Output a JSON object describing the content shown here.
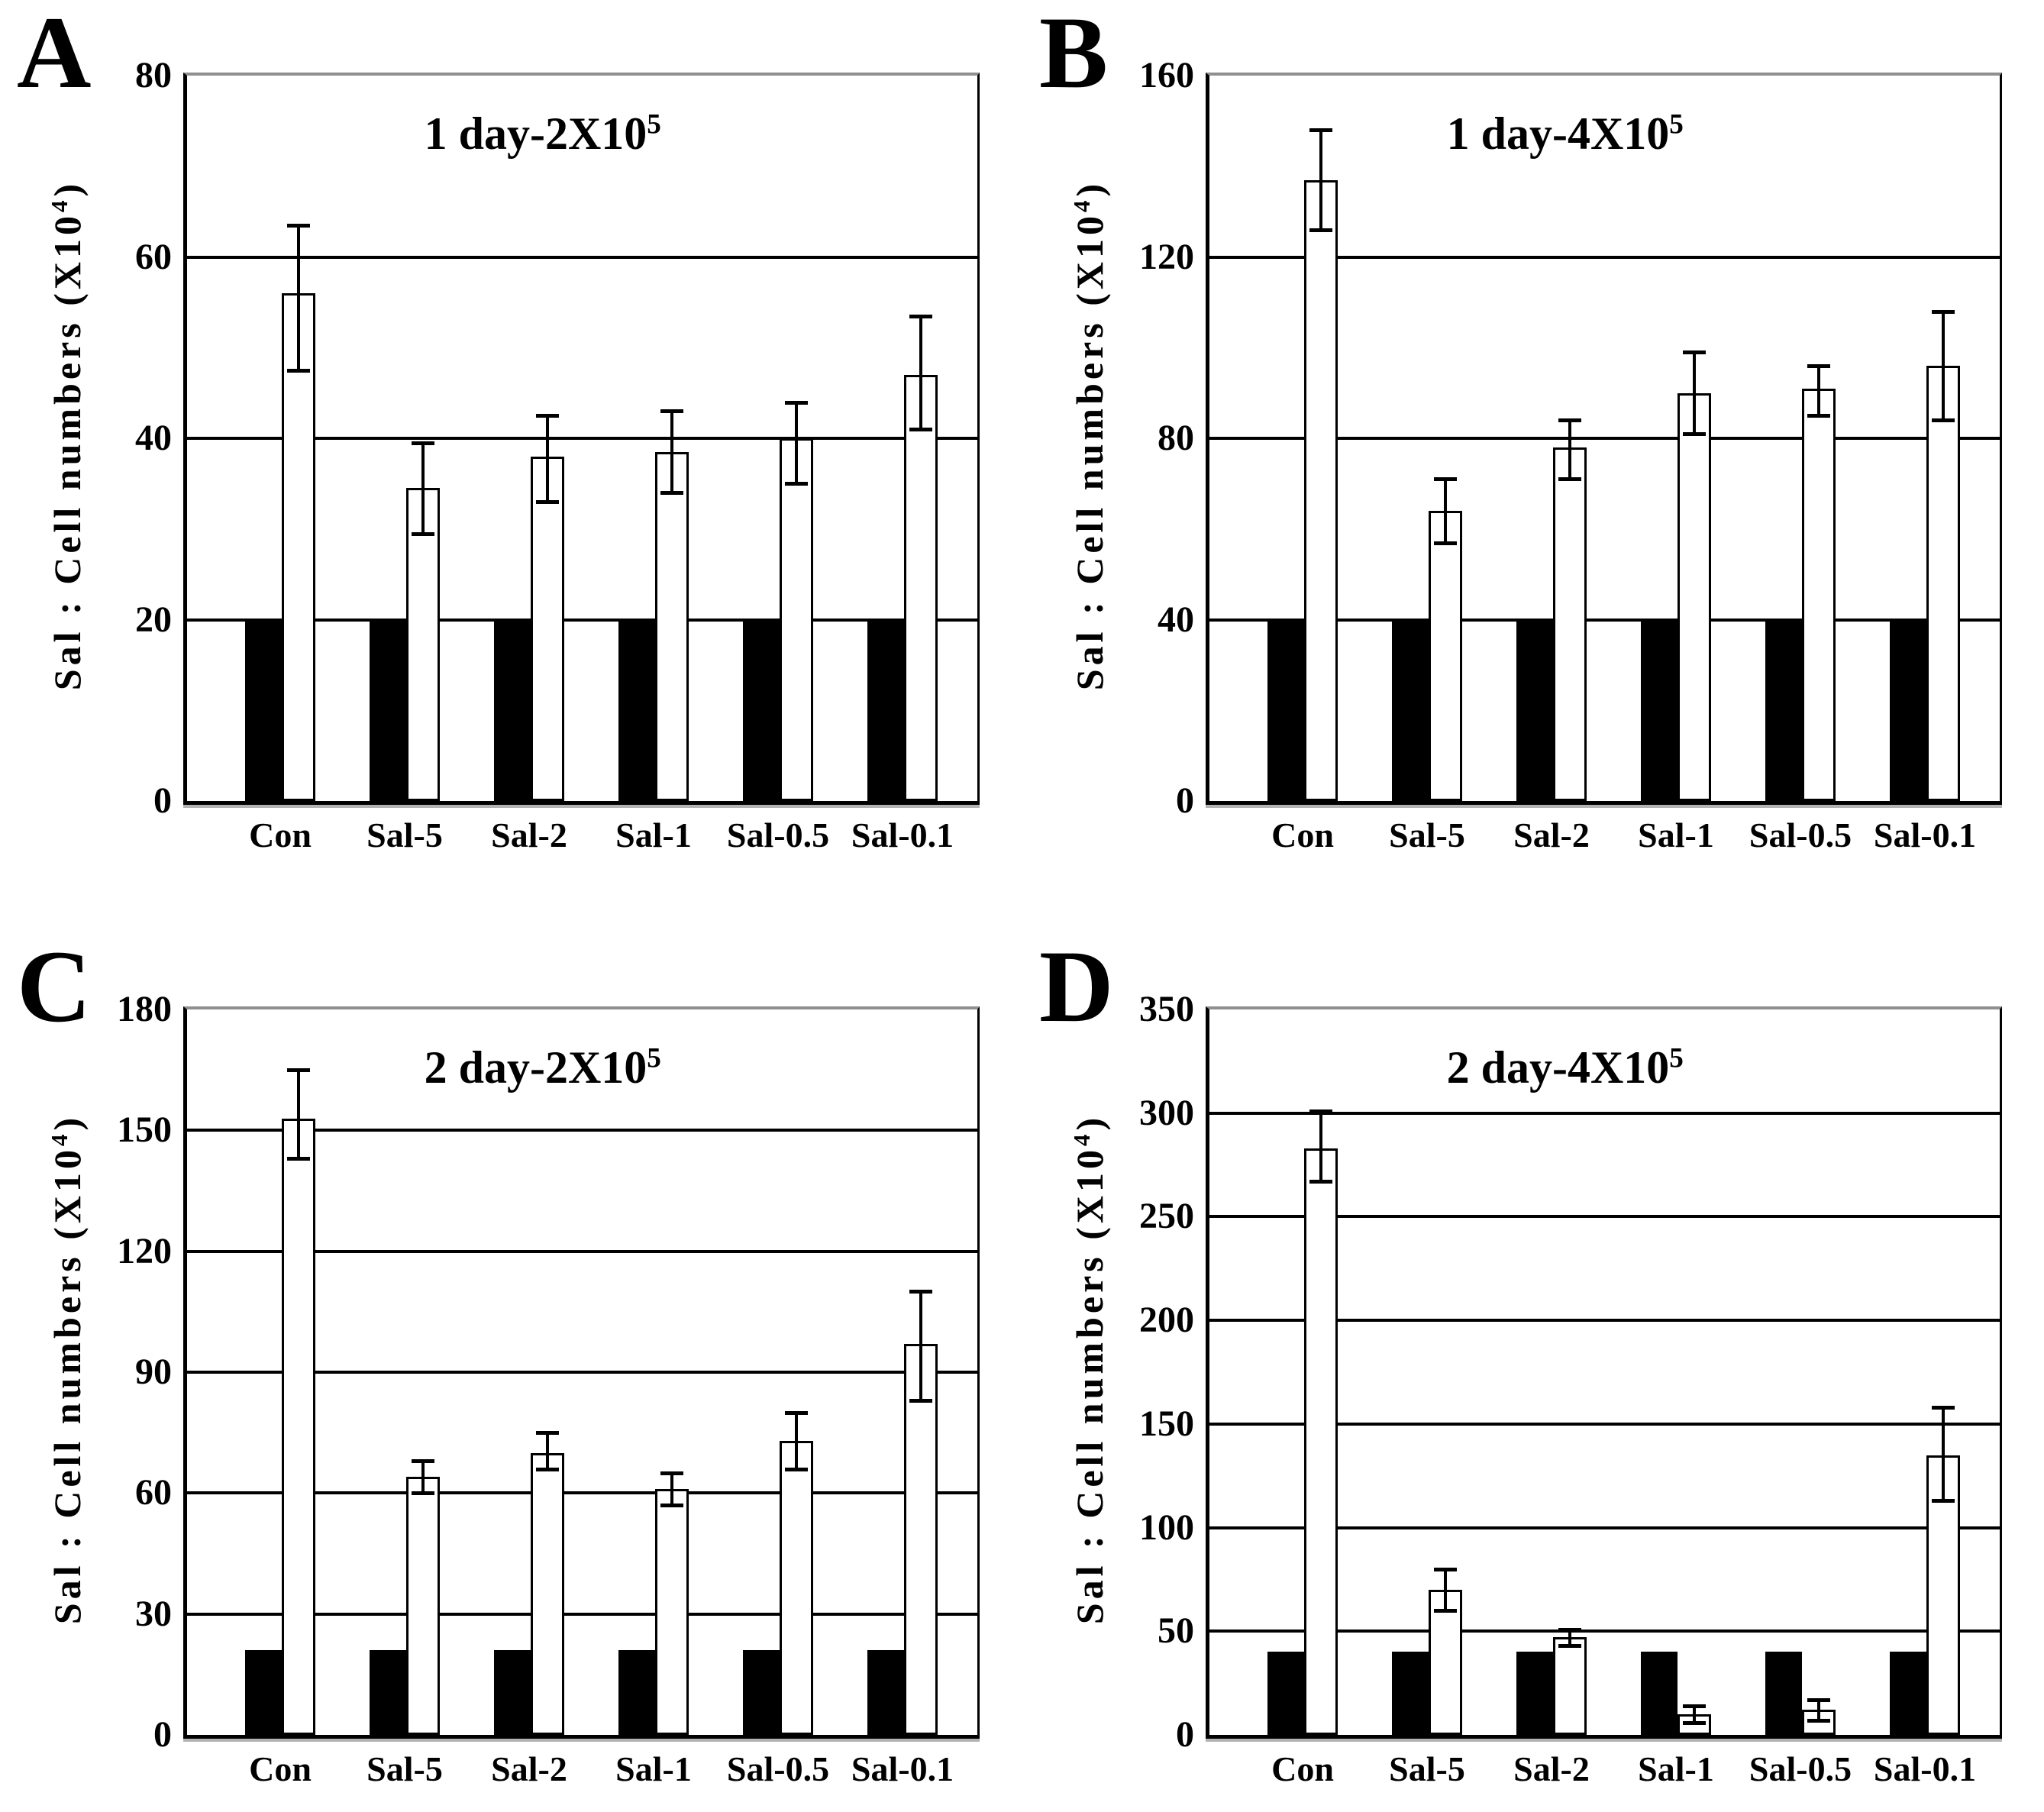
{
  "chart_data": [
    {
      "panel_letter": "A",
      "type": "bar",
      "title": "1 day-2X10^5",
      "title_base": "1 day-2X10",
      "title_exp": "5",
      "ylabel": "Sal : Cell numbers (X10^4)",
      "ylabel_base": "Sal : Cell numbers  (X10",
      "ylabel_exp": "4",
      "ylabel_close": ")",
      "categories": [
        "Con",
        "Sal-5",
        "Sal-2",
        "Sal-1",
        "Sal-0.5",
        "Sal-0.1"
      ],
      "series": [
        {
          "name": "black",
          "fill": "#000000",
          "values": [
            20,
            20,
            20,
            20,
            20,
            20
          ]
        },
        {
          "name": "white",
          "fill": "#ffffff",
          "values": [
            56,
            34.5,
            38,
            38.5,
            40,
            47
          ],
          "errors_up": [
            7.5,
            5,
            4.5,
            4.5,
            4,
            6.5
          ],
          "errors_down": [
            8.5,
            5,
            5,
            4.5,
            5,
            6
          ]
        }
      ],
      "ylim": [
        0,
        80
      ],
      "ytick_step": 20,
      "yticks": [
        0,
        20,
        40,
        60,
        80
      ],
      "grid": true,
      "legend": "none"
    },
    {
      "panel_letter": "B",
      "type": "bar",
      "title": "1 day-4X10^5",
      "title_base": "1 day-4X10",
      "title_exp": "5",
      "ylabel": "Sal : Cell numbers (X10^4)",
      "ylabel_base": "Sal : Cell numbers  (X10",
      "ylabel_exp": "4",
      "ylabel_close": ")",
      "categories": [
        "Con",
        "Sal-5",
        "Sal-2",
        "Sal-1",
        "Sal-0.5",
        "Sal-0.1"
      ],
      "series": [
        {
          "name": "black",
          "fill": "#000000",
          "values": [
            40,
            40,
            40,
            40,
            40,
            40
          ]
        },
        {
          "name": "white",
          "fill": "#ffffff",
          "values": [
            137,
            64,
            78,
            90,
            91,
            96
          ],
          "errors_up": [
            11,
            7,
            6,
            9,
            5,
            12
          ],
          "errors_down": [
            11,
            7,
            7,
            9,
            6,
            12
          ]
        }
      ],
      "ylim": [
        0,
        160
      ],
      "ytick_step": 40,
      "yticks": [
        0,
        40,
        80,
        120,
        160
      ],
      "grid": true,
      "legend": "none"
    },
    {
      "panel_letter": "C",
      "type": "bar",
      "title": "2 day-2X10^5",
      "title_base": "2 day-2X10",
      "title_exp": "5",
      "ylabel": "Sal : Cell numbers (X10^4)",
      "ylabel_base": "Sal : Cell numbers  (X10",
      "ylabel_exp": "4",
      "ylabel_close": ")",
      "categories": [
        "Con",
        "Sal-5",
        "Sal-2",
        "Sal-1",
        "Sal-0.5",
        "Sal-0.1"
      ],
      "series": [
        {
          "name": "black",
          "fill": "#000000",
          "values": [
            21,
            21,
            21,
            21,
            21,
            21
          ]
        },
        {
          "name": "white",
          "fill": "#ffffff",
          "values": [
            153,
            64,
            70,
            61,
            73,
            97
          ],
          "errors_up": [
            12,
            4,
            5,
            4,
            7,
            13
          ],
          "errors_down": [
            10,
            4,
            4,
            4,
            7,
            14
          ]
        }
      ],
      "ylim": [
        0,
        180
      ],
      "ytick_step": 30,
      "yticks": [
        0,
        30,
        60,
        90,
        120,
        150,
        180
      ],
      "grid": true,
      "legend": "none"
    },
    {
      "panel_letter": "D",
      "type": "bar",
      "title": "2 day-4X10^5",
      "title_base": "2 day-4X10",
      "title_exp": "5",
      "ylabel": "Sal : Cell numbers (X10^4)",
      "ylabel_base": "Sal : Cell numbers  (X10",
      "ylabel_exp": "4",
      "ylabel_close": ")",
      "categories": [
        "Con",
        "Sal-5",
        "Sal-2",
        "Sal-1",
        "Sal-0.5",
        "Sal-0.1"
      ],
      "series": [
        {
          "name": "black",
          "fill": "#000000",
          "values": [
            40,
            40,
            40,
            40,
            40,
            40
          ]
        },
        {
          "name": "white",
          "fill": "#ffffff",
          "values": [
            283,
            70,
            47,
            10,
            12,
            135
          ],
          "errors_up": [
            18,
            10,
            4,
            4,
            5,
            23
          ],
          "errors_down": [
            16,
            10,
            4,
            4,
            5,
            22
          ]
        }
      ],
      "ylim": [
        0,
        350
      ],
      "ytick_step": 50,
      "yticks": [
        0,
        50,
        100,
        150,
        200,
        250,
        300,
        350
      ],
      "grid": true,
      "legend": "none"
    }
  ]
}
